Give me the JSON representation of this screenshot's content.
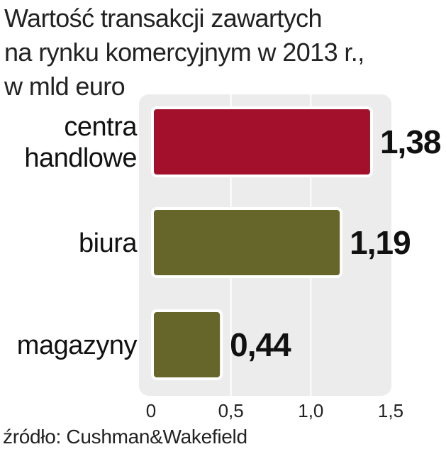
{
  "chart_data": {
    "type": "bar",
    "orientation": "horizontal",
    "title_lines": [
      "Wartość transakcji zawartych",
      "na rynku komercyjnym w 2013 r.,",
      "w mld euro"
    ],
    "categories": [
      {
        "lines": [
          "centra",
          "handlowe"
        ]
      },
      {
        "lines": [
          "biura"
        ]
      },
      {
        "lines": [
          "magazyny"
        ]
      }
    ],
    "values": [
      1.38,
      1.19,
      0.44
    ],
    "value_labels": [
      "1,38",
      "1,19",
      "0,44"
    ],
    "bar_colors": [
      "#a3102c",
      "#67662a",
      "#67662a"
    ],
    "xlim": [
      0,
      1.5
    ],
    "ticks": [
      0,
      0.5,
      1.0,
      1.5
    ],
    "tick_labels": [
      "0",
      "0,5",
      "1,0",
      "1,5"
    ],
    "grid": true,
    "plot_background": "#ececec",
    "gridline_color": "#ffffff",
    "source": "źródło: Cushman&Wakefield"
  }
}
